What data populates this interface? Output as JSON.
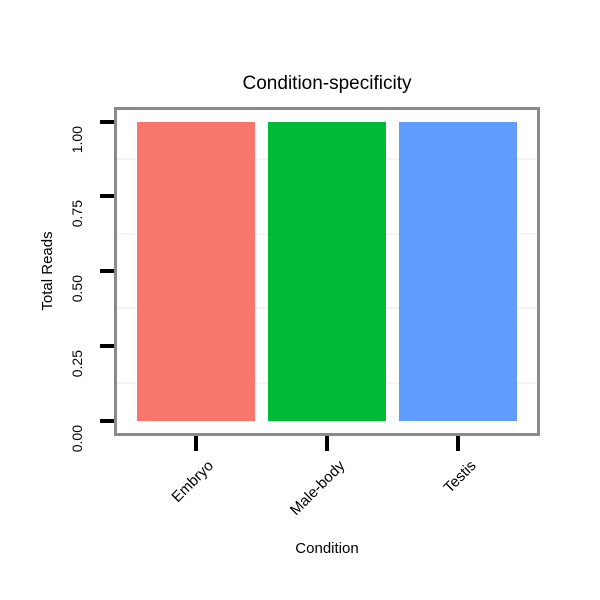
{
  "figure": {
    "background": "#ffffff"
  },
  "chart_data": {
    "type": "bar",
    "title": "Condition-specificity",
    "xlabel": "Condition",
    "ylabel": "Total Reads",
    "categories": [
      "Embryo",
      "Male-body",
      "Testis"
    ],
    "values": [
      1.0,
      1.0,
      1.0
    ],
    "bar_colors": [
      "#F8766D",
      "#00BA38",
      "#619CFF"
    ],
    "ylim": [
      0,
      1
    ],
    "ytick_labels": [
      "0.00",
      "0.25",
      "0.50",
      "0.75",
      "1.00"
    ],
    "ytick_values": [
      0,
      0.25,
      0.5,
      0.75,
      1.0
    ],
    "minor_grid_values": [
      0.125,
      0.375,
      0.625,
      0.875
    ],
    "grid": "minor-horizontal-only",
    "legend": "none",
    "panel_background": "#ffffff",
    "panel_border_color": "#8a8a8a",
    "tick_color": "#000000",
    "text_color": "#000000",
    "x_tick_label_angle_deg": 45,
    "y_tick_label_angle_deg": 90
  }
}
